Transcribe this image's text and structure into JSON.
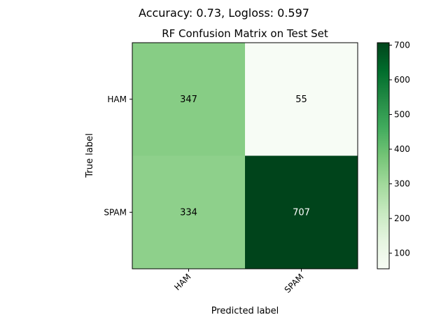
{
  "chart_data": {
    "type": "heatmap",
    "suptitle": "Accuracy: 0.73, Logloss: 0.597",
    "title": "RF Confusion Matrix on Test Set",
    "xlabel": "Predicted label",
    "ylabel": "True label",
    "x_categories": [
      "HAM",
      "SPAM"
    ],
    "y_categories": [
      "HAM",
      "SPAM"
    ],
    "values": [
      [
        347,
        55
      ],
      [
        334,
        707
      ]
    ],
    "colormap": "Greens",
    "color_range": [
      55,
      707
    ],
    "colorbar_ticks": [
      100,
      200,
      300,
      400,
      500,
      600,
      700
    ]
  }
}
